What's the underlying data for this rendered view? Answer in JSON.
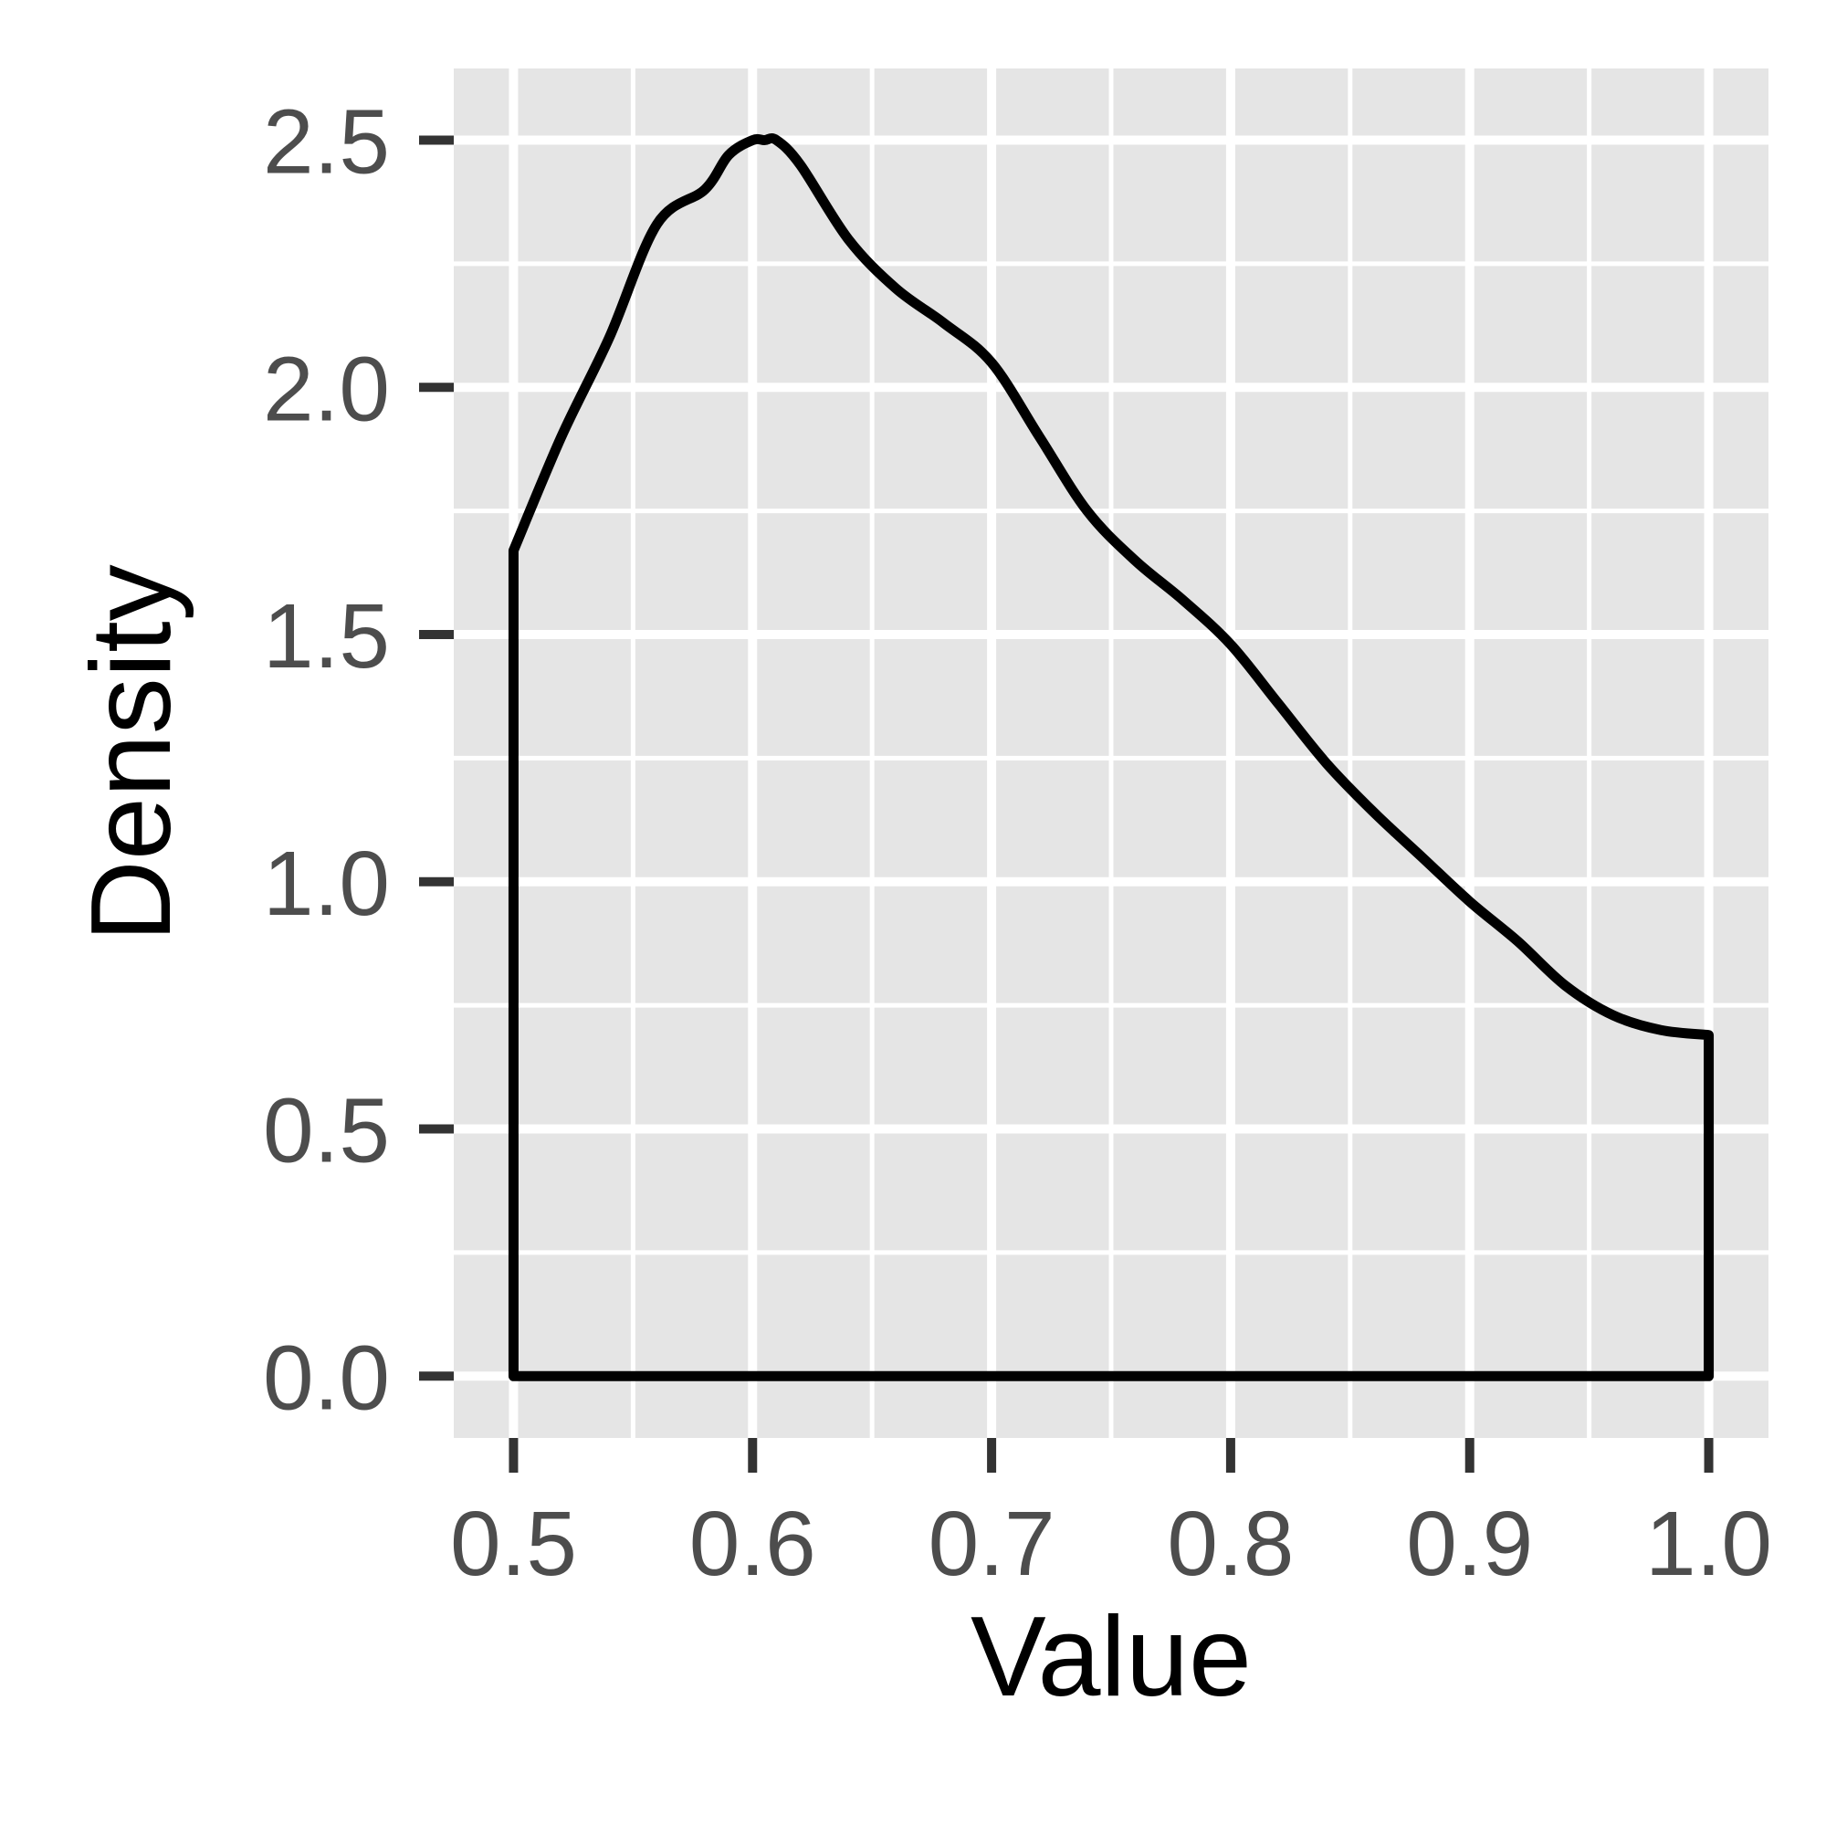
{
  "chart_data": {
    "type": "line",
    "xlabel": "Value",
    "ylabel": "Density",
    "xlim": [
      0.475,
      1.025
    ],
    "ylim": [
      -0.125,
      2.645
    ],
    "x_ticks": [
      0.5,
      0.6,
      0.7,
      0.8,
      0.9,
      1.0
    ],
    "x_tick_labels": [
      "0.5",
      "0.6",
      "0.7",
      "0.8",
      "0.9",
      "1.0"
    ],
    "y_ticks": [
      0.0,
      0.5,
      1.0,
      1.5,
      2.0,
      2.5
    ],
    "y_tick_labels": [
      "0.0",
      "0.5",
      "1.0",
      "1.5",
      "2.0",
      "2.5"
    ],
    "grid": true,
    "panel_background": "#e5e5e5",
    "grid_color": "#ffffff",
    "line_color": "#000000",
    "series": [
      {
        "x": [
          0.5,
          0.52,
          0.54,
          0.56,
          0.58,
          0.59,
          0.6,
          0.605,
          0.61,
          0.62,
          0.64,
          0.66,
          0.68,
          0.7,
          0.72,
          0.74,
          0.76,
          0.78,
          0.8,
          0.82,
          0.84,
          0.86,
          0.88,
          0.9,
          0.92,
          0.94,
          0.96,
          0.98,
          1.0
        ],
        "y": [
          1.67,
          1.9,
          2.1,
          2.33,
          2.4,
          2.47,
          2.5,
          2.5,
          2.5,
          2.45,
          2.3,
          2.2,
          2.13,
          2.05,
          1.9,
          1.75,
          1.65,
          1.57,
          1.48,
          1.36,
          1.24,
          1.14,
          1.05,
          0.96,
          0.88,
          0.79,
          0.73,
          0.7,
          0.69
        ]
      }
    ]
  }
}
